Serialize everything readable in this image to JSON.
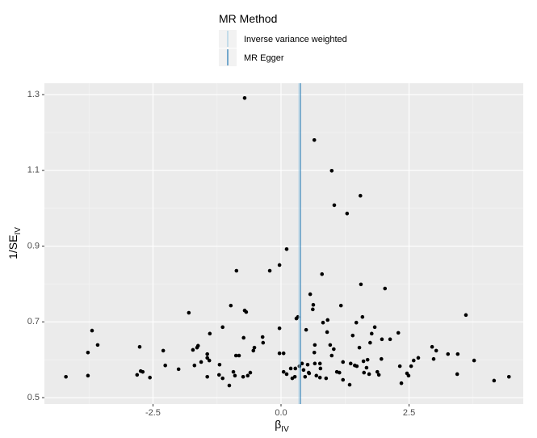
{
  "chart_data": {
    "type": "scatter",
    "legend_title": "MR Method",
    "xlabel": "β",
    "xlabel_sub": "IV",
    "ylabel": "1/SE",
    "ylabel_sub": "IV",
    "xlim": [
      -4.62,
      4.73
    ],
    "ylim": [
      0.483,
      1.33
    ],
    "xticks": [
      -2.5,
      {
        "value": 0,
        "label": "0.0"
      },
      2.5
    ],
    "yticks": [
      0.5,
      0.7,
      0.9,
      1.1,
      1.3
    ],
    "grid": true,
    "lines": [
      {
        "name": "Inverse variance weighted",
        "color": "#a6cee3",
        "x": 0.35
      },
      {
        "name": "MR Egger",
        "color": "#1f78b4",
        "x": 0.38
      }
    ],
    "points": {
      "color": "#000000",
      "x": [
        -4.2,
        -3.77,
        -3.77,
        -3.69,
        -3.58,
        -2.81,
        -2.76,
        -2.74,
        -2.7,
        -2.56,
        -2.3,
        -2.26,
        -2.0,
        -1.8,
        -1.72,
        -1.69,
        -1.64,
        -1.62,
        -1.56,
        -1.44,
        -1.44,
        -1.4,
        -1.39,
        -1.44,
        -1.21,
        -1.2,
        -1.14,
        -1.14,
        -1.01,
        -0.98,
        -0.93,
        -0.9,
        -0.88,
        -0.87,
        -0.82,
        -0.74,
        -0.73,
        -0.71,
        -0.71,
        -0.68,
        -0.65,
        -0.6,
        -0.54,
        -0.52,
        -0.36,
        -0.35,
        -0.22,
        -0.03,
        -0.03,
        -0.03,
        0.05,
        0.05,
        0.11,
        0.11,
        0.19,
        0.22,
        0.27,
        0.3,
        0.33,
        0.28,
        0.36,
        0.41,
        0.44,
        0.47,
        0.49,
        0.52,
        0.54,
        0.55,
        0.57,
        0.62,
        0.63,
        0.65,
        0.65,
        0.66,
        0.66,
        0.69,
        0.76,
        0.77,
        0.76,
        0.8,
        0.82,
        0.88,
        0.9,
        0.91,
        0.96,
        0.99,
        0.99,
        1.03,
        1.04,
        1.09,
        1.14,
        1.17,
        1.21,
        1.21,
        1.29,
        1.34,
        1.36,
        1.4,
        1.44,
        1.47,
        1.48,
        1.53,
        1.55,
        1.56,
        1.59,
        1.61,
        1.62,
        1.67,
        1.69,
        1.72,
        1.74,
        1.77,
        1.83,
        1.88,
        1.91,
        1.96,
        1.97,
        2.03,
        2.13,
        2.29,
        2.32,
        2.35,
        2.46,
        2.49,
        2.54,
        2.59,
        2.68,
        2.95,
        2.98,
        3.03,
        3.26,
        3.44,
        3.45,
        3.61,
        3.77,
        4.16,
        4.45
      ],
      "y": [
        0.555,
        0.558,
        0.619,
        0.677,
        0.639,
        0.56,
        0.634,
        0.57,
        0.568,
        0.553,
        0.624,
        0.585,
        0.575,
        0.724,
        0.626,
        0.585,
        0.632,
        0.637,
        0.594,
        0.615,
        0.605,
        0.598,
        0.669,
        0.555,
        0.56,
        0.587,
        0.686,
        0.551,
        0.532,
        0.743,
        0.568,
        0.558,
        0.611,
        0.835,
        0.611,
        0.555,
        0.658,
        0.73,
        1.291,
        0.726,
        0.558,
        0.566,
        0.624,
        0.632,
        0.66,
        0.645,
        0.835,
        0.85,
        0.683,
        0.617,
        0.617,
        0.568,
        0.892,
        0.562,
        0.577,
        0.551,
        0.555,
        0.709,
        0.713,
        0.577,
        0.583,
        0.59,
        0.573,
        0.555,
        0.679,
        0.587,
        0.566,
        0.564,
        0.773,
        0.733,
        0.745,
        1.18,
        0.619,
        0.639,
        0.59,
        0.558,
        0.553,
        0.577,
        0.59,
        0.826,
        0.698,
        0.551,
        0.673,
        0.705,
        0.639,
        1.099,
        0.611,
        0.628,
        1.008,
        0.568,
        0.566,
        0.743,
        0.594,
        0.547,
        0.986,
        0.534,
        0.59,
        0.664,
        0.585,
        0.698,
        0.583,
        0.632,
        1.033,
        0.799,
        0.713,
        0.596,
        0.566,
        0.579,
        0.6,
        0.562,
        0.645,
        0.669,
        0.686,
        0.568,
        0.56,
        0.602,
        0.654,
        0.788,
        0.654,
        0.671,
        0.583,
        0.538,
        0.564,
        0.558,
        0.583,
        0.598,
        0.605,
        0.634,
        0.602,
        0.624,
        0.615,
        0.562,
        0.615,
        0.718,
        0.598,
        0.545,
        0.555
      ]
    }
  }
}
